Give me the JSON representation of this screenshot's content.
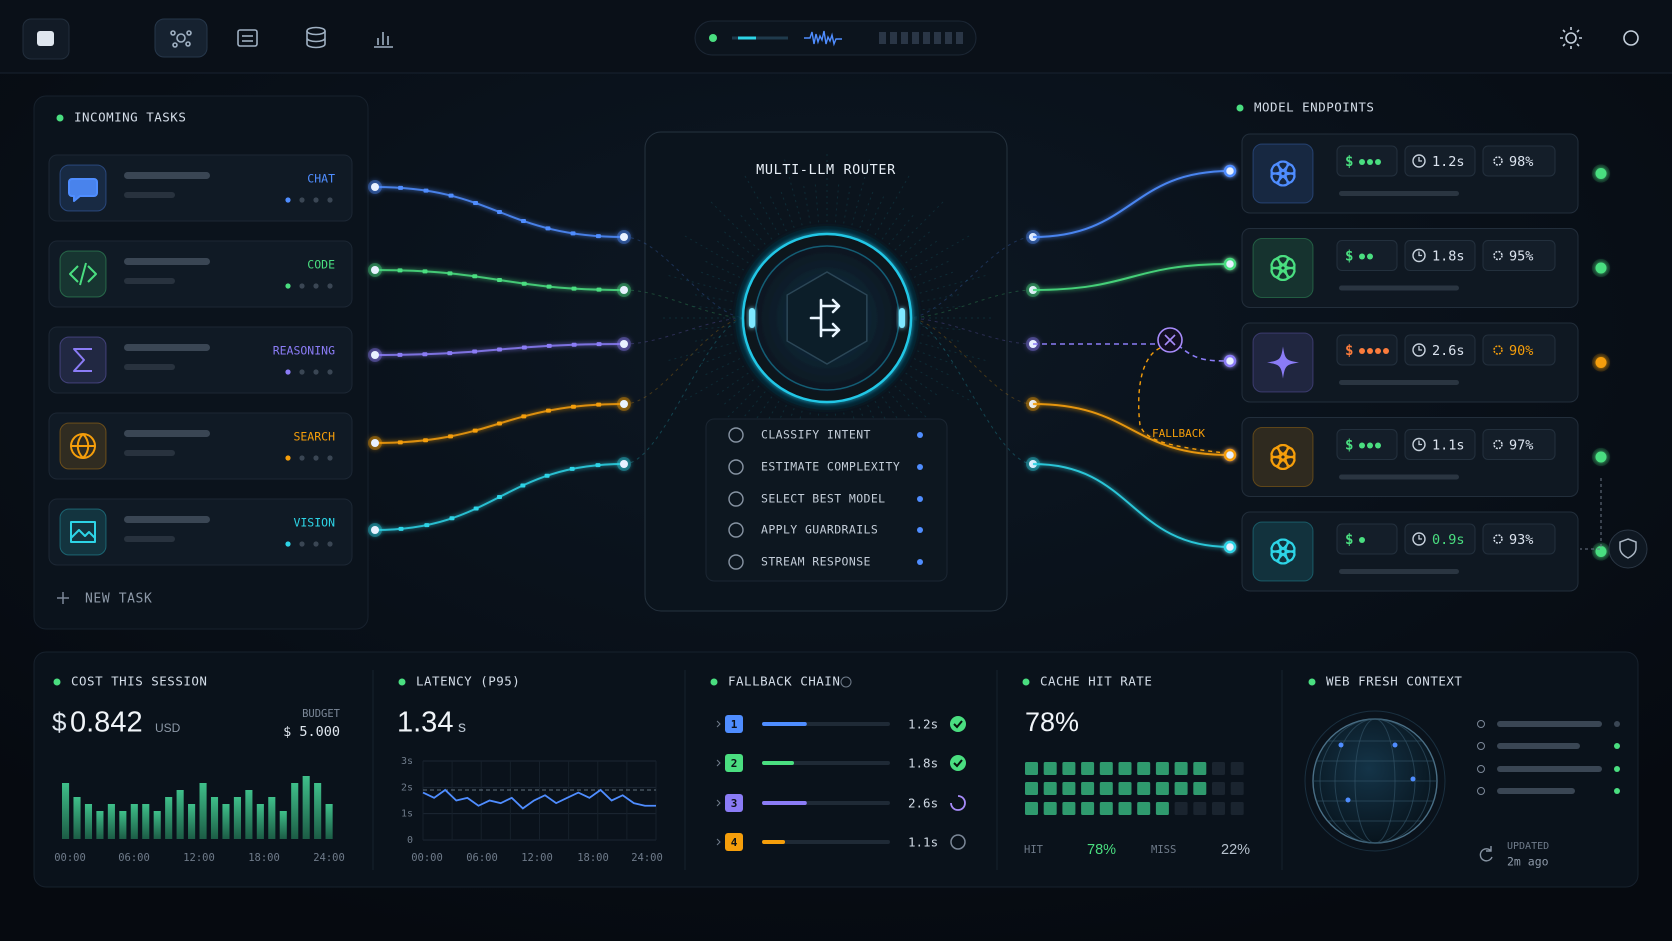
{
  "incoming": {
    "title": "INCOMING TASKS",
    "tasks": [
      {
        "label": "CHAT",
        "color": "#4f8dff"
      },
      {
        "label": "CODE",
        "color": "#4ade80"
      },
      {
        "label": "REASONING",
        "color": "#8b7cf6"
      },
      {
        "label": "SEARCH",
        "color": "#f59e0b"
      },
      {
        "label": "VISION",
        "color": "#2dd4e6"
      }
    ],
    "new_task": "NEW TASK"
  },
  "router": {
    "title": "MULTI-LLM ROUTER",
    "steps": [
      "CLASSIFY INTENT",
      "ESTIMATE COMPLEXITY",
      "SELECT BEST MODEL",
      "APPLY GUARDRAILS",
      "STREAM RESPONSE"
    ]
  },
  "endpoints": {
    "title": "MODEL ENDPOINTS",
    "fallback_label": "FALLBACK",
    "models": [
      {
        "cost_level": 3,
        "latency": "1.2s",
        "score": "98%",
        "color": "#4f8dff",
        "cost_color": "#4ade80",
        "score_color": "#dbe3ee",
        "status_color": "#4ade80"
      },
      {
        "cost_level": 2,
        "latency": "1.8s",
        "score": "95%",
        "color": "#4ade80",
        "cost_color": "#4ade80",
        "score_color": "#dbe3ee",
        "status_color": "#4ade80"
      },
      {
        "cost_level": 4,
        "latency": "2.6s",
        "score": "90%",
        "color": "#8b7cf6",
        "cost_color": "#fb7c3c",
        "score_color": "#f59e0b",
        "status_color": "#f59e0b"
      },
      {
        "cost_level": 3,
        "latency": "1.1s",
        "score": "97%",
        "color": "#f59e0b",
        "cost_color": "#4ade80",
        "score_color": "#dbe3ee",
        "status_color": "#4ade80"
      },
      {
        "cost_level": 1,
        "latency": "0.9s",
        "score": "93%",
        "color": "#2dd4e6",
        "cost_color": "#4ade80",
        "score_color": "#dbe3ee",
        "status_color": "#4ade80"
      }
    ]
  },
  "cost": {
    "title": "COST THIS SESSION",
    "currency": "$",
    "amount": "0.842",
    "unit": "USD",
    "budget_label": "BUDGET",
    "budget": "$ 5.000",
    "bars": [
      8,
      6,
      5,
      4,
      5,
      4,
      5,
      5,
      4,
      6,
      7,
      5,
      8,
      6,
      5,
      6,
      7,
      5,
      6,
      4,
      8,
      9,
      8,
      5
    ],
    "x_labels": [
      "00:00",
      "06:00",
      "12:00",
      "18:00",
      "24:00"
    ]
  },
  "latency": {
    "title": "LATENCY (P95)",
    "value": "1.34",
    "unit": "s",
    "ylim": [
      0,
      3
    ],
    "yticks": [
      {
        "value": 3,
        "label": "3s"
      },
      {
        "value": 2,
        "label": "2s"
      },
      {
        "value": 1,
        "label": "1s"
      },
      0
    ],
    "threshold": 1.9,
    "values": [
      1.8,
      1.6,
      1.9,
      1.5,
      1.6,
      1.3,
      1.5,
      1.4,
      1.6,
      1.2,
      1.5,
      1.7,
      1.4,
      1.6,
      1.8,
      1.6,
      1.9,
      1.5,
      1.7,
      1.4,
      1.3,
      1.3
    ],
    "x_labels": [
      "00:00",
      "06:00",
      "12:00",
      "18:00",
      "24:00"
    ]
  },
  "fallback": {
    "title": "FALLBACK CHAIN",
    "items": [
      {
        "rank": "1",
        "latency": "1.2s",
        "progress": 0.35,
        "status": "ok",
        "color": "#4f8dff"
      },
      {
        "rank": "2",
        "latency": "1.8s",
        "progress": 0.25,
        "status": "ok",
        "color": "#4ade80"
      },
      {
        "rank": "3",
        "latency": "2.6s",
        "progress": 0.35,
        "status": "loading",
        "color": "#8b7cf6"
      },
      {
        "rank": "4",
        "latency": "1.1s",
        "progress": 0.18,
        "status": "idle",
        "color": "#f59e0b"
      }
    ]
  },
  "cache": {
    "title": "CACHE HIT RATE",
    "value": "78%",
    "cells_per_row": 12,
    "filled": [
      10,
      10,
      8
    ],
    "hit_label": "HIT",
    "hit": "78%",
    "miss_label": "MISS",
    "miss": "22%"
  },
  "web": {
    "title": "WEB FRESH CONTEXT",
    "updated_label": "UPDATED",
    "updated": "2m ago"
  }
}
